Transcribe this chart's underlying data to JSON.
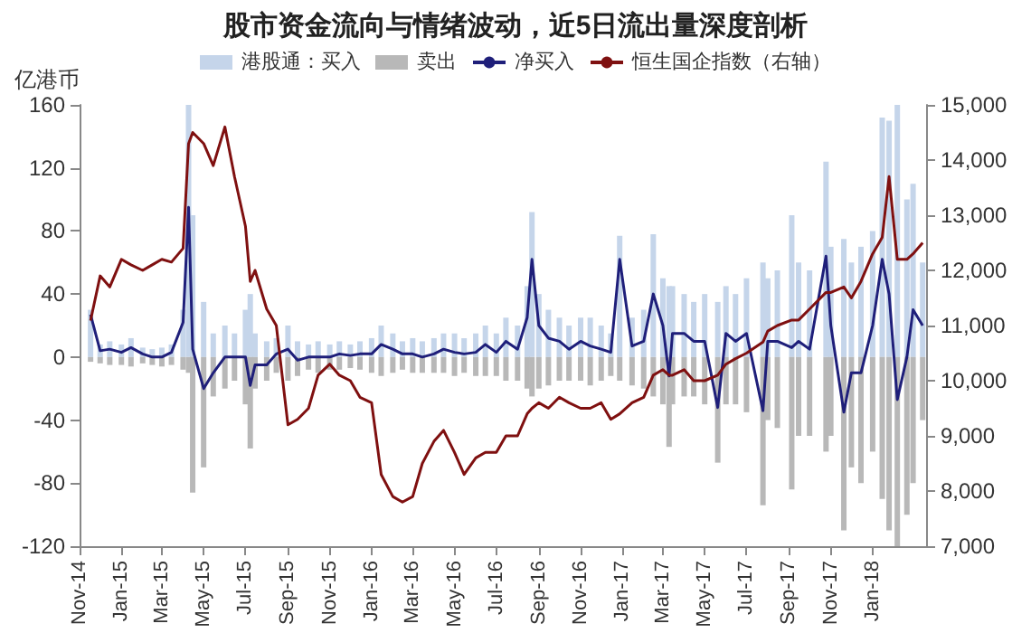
{
  "chart_data": {
    "type": "bar",
    "title": "股市资金流向与情绪波动，近5日流出量深度剖析",
    "ylabel": "亿港币",
    "x": [
      "2014-11-17",
      "2014-12-01",
      "2014-12-15",
      "2015-01-01",
      "2015-01-15",
      "2015-02-01",
      "2015-02-15",
      "2015-03-01",
      "2015-03-15",
      "2015-04-01",
      "2015-04-09",
      "2015-04-15",
      "2015-05-01",
      "2015-05-15",
      "2015-06-01",
      "2015-06-15",
      "2015-07-01",
      "2015-07-08",
      "2015-07-15",
      "2015-08-01",
      "2015-08-15",
      "2015-09-01",
      "2015-09-15",
      "2015-10-01",
      "2015-10-15",
      "2015-11-01",
      "2015-11-15",
      "2015-12-01",
      "2015-12-15",
      "2016-01-01",
      "2016-01-15",
      "2016-02-01",
      "2016-02-15",
      "2016-03-01",
      "2016-03-15",
      "2016-04-01",
      "2016-04-15",
      "2016-05-01",
      "2016-05-15",
      "2016-06-01",
      "2016-06-15",
      "2016-07-01",
      "2016-07-15",
      "2016-08-01",
      "2016-08-15",
      "2016-08-22",
      "2016-09-01",
      "2016-09-15",
      "2016-10-01",
      "2016-10-15",
      "2016-11-01",
      "2016-11-15",
      "2016-12-01",
      "2016-12-15",
      "2016-12-28",
      "2017-01-15",
      "2017-02-01",
      "2017-02-15",
      "2017-03-01",
      "2017-03-10",
      "2017-03-15",
      "2017-04-01",
      "2017-04-15",
      "2017-05-01",
      "2017-05-20",
      "2017-06-01",
      "2017-06-15",
      "2017-07-01",
      "2017-07-25",
      "2017-08-01",
      "2017-08-15",
      "2017-09-05",
      "2017-09-15",
      "2017-10-01",
      "2017-10-25",
      "2017-11-01",
      "2017-11-20",
      "2017-12-01",
      "2017-12-15",
      "2018-01-01",
      "2018-01-15",
      "2018-01-25",
      "2018-02-06",
      "2018-02-20",
      "2018-03-01",
      "2018-03-15"
    ],
    "series": [
      {
        "name": "港股通：买入",
        "color": "#c5d5ea",
        "values": [
          30,
          8,
          10,
          8,
          12,
          6,
          5,
          6,
          8,
          30,
          160,
          90,
          35,
          15,
          20,
          15,
          30,
          40,
          15,
          10,
          12,
          20,
          10,
          8,
          10,
          8,
          10,
          8,
          10,
          12,
          20,
          15,
          10,
          12,
          10,
          12,
          15,
          15,
          12,
          15,
          20,
          15,
          25,
          20,
          45,
          92,
          40,
          30,
          25,
          20,
          25,
          25,
          20,
          15,
          77,
          25,
          30,
          78,
          50,
          45,
          45,
          40,
          35,
          40,
          35,
          45,
          40,
          50,
          60,
          50,
          55,
          90,
          60,
          55,
          124,
          70,
          75,
          60,
          70,
          80,
          152,
          150,
          160,
          100,
          110,
          60
        ]
      },
      {
        "name": "卖出",
        "color": "#b8b8b8",
        "values": [
          -3,
          -4,
          -5,
          -5,
          -6,
          -4,
          -5,
          -6,
          -5,
          -8,
          -10,
          -86,
          -70,
          -25,
          -20,
          -15,
          -30,
          -58,
          -20,
          -15,
          -10,
          -15,
          -12,
          -8,
          -10,
          -8,
          -8,
          -7,
          -8,
          -10,
          -12,
          -10,
          -8,
          -10,
          -10,
          -10,
          -10,
          -12,
          -10,
          -12,
          -12,
          -12,
          -15,
          -15,
          -20,
          -25,
          -20,
          -18,
          -15,
          -15,
          -15,
          -18,
          -15,
          -12,
          -15,
          -18,
          -20,
          -25,
          -30,
          -57,
          -30,
          -25,
          -25,
          -30,
          -67,
          -30,
          -30,
          -35,
          -94,
          -40,
          -45,
          -84,
          -50,
          -50,
          -60,
          -50,
          -110,
          -70,
          -80,
          -60,
          -90,
          -110,
          -120,
          -100,
          -80,
          -40
        ]
      },
      {
        "name": "净买入",
        "type": "line",
        "color": "#1f1f7a",
        "values": [
          27,
          4,
          5,
          3,
          6,
          2,
          0,
          0,
          3,
          22,
          95,
          5,
          -20,
          -10,
          0,
          0,
          0,
          -18,
          -5,
          -5,
          2,
          5,
          -2,
          0,
          0,
          0,
          2,
          1,
          2,
          2,
          8,
          5,
          2,
          2,
          0,
          2,
          5,
          3,
          2,
          3,
          8,
          3,
          10,
          5,
          25,
          62,
          20,
          12,
          10,
          5,
          10,
          7,
          5,
          3,
          62,
          7,
          10,
          40,
          20,
          -12,
          15,
          15,
          10,
          10,
          -32,
          15,
          10,
          15,
          -34,
          10,
          10,
          6,
          10,
          5,
          64,
          20,
          -35,
          -10,
          -10,
          20,
          62,
          40,
          -27,
          0,
          30,
          20
        ]
      },
      {
        "name": "恒生国企指数（右轴）",
        "type": "line",
        "axis": "y2",
        "color": "#7f1010",
        "values": [
          11090,
          11900,
          11700,
          12200,
          12100,
          12000,
          12100,
          12200,
          12150,
          12400,
          14300,
          14500,
          14300,
          13900,
          14600,
          13700,
          12800,
          11800,
          12000,
          11300,
          11000,
          9200,
          9300,
          9500,
          10100,
          10300,
          10100,
          10000,
          9700,
          9600,
          8300,
          7900,
          7800,
          7900,
          8500,
          8900,
          9100,
          8700,
          8300,
          8600,
          8700,
          8700,
          9000,
          9000,
          9400,
          9500,
          9600,
          9500,
          9700,
          9600,
          9500,
          9500,
          9600,
          9300,
          9400,
          9600,
          9700,
          10100,
          10200,
          10100,
          10100,
          10200,
          10000,
          10000,
          10100,
          10300,
          10400,
          10500,
          10700,
          10900,
          11000,
          11100,
          11100,
          11300,
          11600,
          11600,
          11700,
          11500,
          11800,
          12300,
          12600,
          13700,
          12200,
          12200,
          12300,
          12500
        ]
      }
    ],
    "xlim": [
      "2014-11-01",
      "2018-03-20"
    ],
    "xticks": [
      {
        "value": "2014-11-01",
        "label": "Nov-14"
      },
      {
        "value": "2015-01-01",
        "label": "Jan-15"
      },
      {
        "value": "2015-03-01",
        "label": "Mar-15"
      },
      {
        "value": "2015-05-01",
        "label": "May-15"
      },
      {
        "value": "2015-07-01",
        "label": "Jul-15"
      },
      {
        "value": "2015-09-01",
        "label": "Sep-15"
      },
      {
        "value": "2015-11-01",
        "label": "Nov-15"
      },
      {
        "value": "2016-01-01",
        "label": "Jan-16"
      },
      {
        "value": "2016-03-01",
        "label": "Mar-16"
      },
      {
        "value": "2016-05-01",
        "label": "May-16"
      },
      {
        "value": "2016-07-01",
        "label": "Jul-16"
      },
      {
        "value": "2016-09-01",
        "label": "Sep-16"
      },
      {
        "value": "2016-11-01",
        "label": "Nov-16"
      },
      {
        "value": "2017-01-01",
        "label": "Jan-17"
      },
      {
        "value": "2017-03-01",
        "label": "Mar-17"
      },
      {
        "value": "2017-05-01",
        "label": "May-17"
      },
      {
        "value": "2017-07-01",
        "label": "Jul-17"
      },
      {
        "value": "2017-09-01",
        "label": "Sep-17"
      },
      {
        "value": "2017-11-01",
        "label": "Nov-17"
      },
      {
        "value": "2018-01-01",
        "label": "Jan-18"
      }
    ],
    "ylim": [
      -120,
      160
    ],
    "yticks": [
      -120,
      -80,
      -40,
      0,
      40,
      80,
      120,
      160
    ],
    "y2lim": [
      7000,
      15000
    ],
    "y2ticks": [
      {
        "value": 7000,
        "label": "7,000"
      },
      {
        "value": 8000,
        "label": "8,000"
      },
      {
        "value": 9000,
        "label": "9,000"
      },
      {
        "value": 10000,
        "label": "10,000"
      },
      {
        "value": 11000,
        "label": "11,000"
      },
      {
        "value": 12000,
        "label": "12,000"
      },
      {
        "value": 13000,
        "label": "13,000"
      },
      {
        "value": 14000,
        "label": "14,000"
      },
      {
        "value": 15000,
        "label": "15,000"
      }
    ],
    "grid": false,
    "legend": "top",
    "stacked": true
  }
}
